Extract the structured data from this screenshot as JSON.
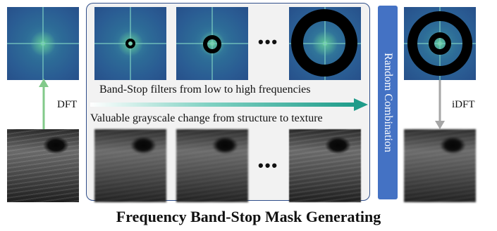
{
  "left": {
    "arrow_label": "DFT"
  },
  "center": {
    "ellipsis_top": "•••",
    "ellipsis_bottom": "•••",
    "arrow_caption_top": "Band-Stop filters from low to high frequencies",
    "arrow_caption_bottom": "Valuable grayscale change from structure to texture"
  },
  "random_combination": {
    "label": "Random Combination"
  },
  "right": {
    "arrow_label": "iDFT"
  },
  "title": "Frequency Band-Stop Mask Generating",
  "colors": {
    "panel_border": "#2f4e8a",
    "random_bar": "#4472c4",
    "green_arrow": "#82c98a",
    "teal_arrow": "#1f9c8a",
    "gray_arrow": "#a6a6a6"
  }
}
